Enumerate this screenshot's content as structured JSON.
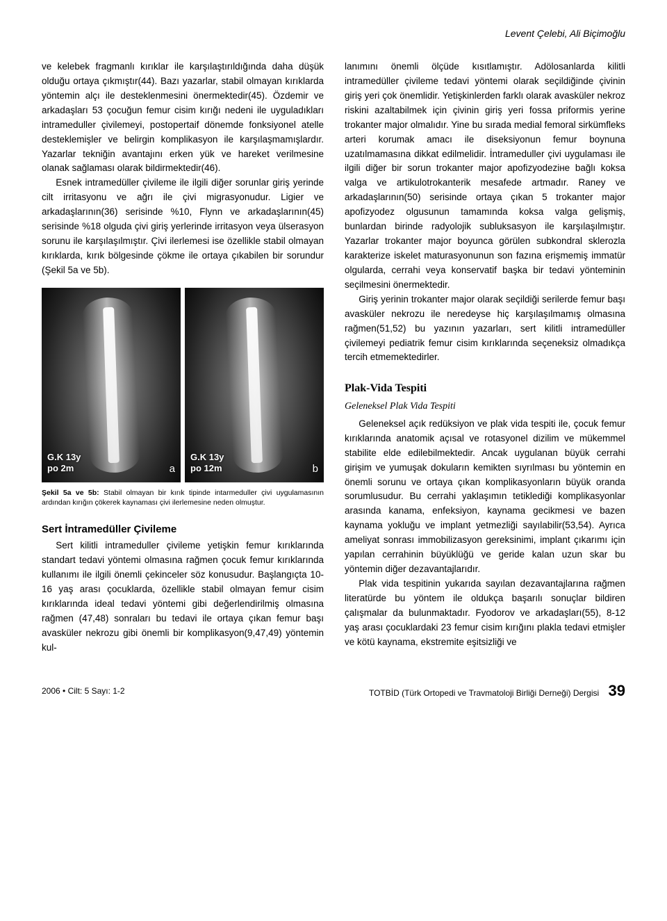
{
  "header": {
    "authors": "Levent Çelebi, Ali Biçimoğlu"
  },
  "col1": {
    "p1": "ve kelebek fragmanlı kırıklar ile karşılaştırıldığında daha düşük olduğu ortaya çıkmıştır(44). Bazı yazarlar, stabil olmayan kırıklarda yöntemin alçı ile desteklenmesini önermektedir(45). Özdemir ve arkadaşları 53 çocuğun femur cisim kırığı nedeni ile uyguladıkları intrameduller çivilemeyi, postopertaif dönemde fonksiyonel atelle desteklemişler ve belirgin komplikasyon ile karşılaşmamışlardır. Yazarlar tekniğin avantajını erken yük ve hareket verilmesine olanak sağlaması olarak bildirmektedir(46).",
    "p2": "Esnek intramedüller çivileme ile ilgili diğer sorunlar giriş yerinde cilt irritasyonu ve ağrı ile çivi migrasyonudur. Ligier ve arkadaşlarının(36) serisinde %10, Flynn ve arkadaşlarının(45) serisinde %18 olguda çivi giriş yerlerinde irritasyon veya ülserasyon sorunu ile karşılaşılmıştır. Çivi ilerlemesi ise özellikle stabil olmayan kırıklarda, kırık bölgesinde çökme ile ortaya çıkabilen bir sorundur (Şekil 5a ve 5b).",
    "fig_a_label": "G.K 13y",
    "fig_a_sub": "po 2m",
    "fig_a_letter": "a",
    "fig_b_label": "G.K 13y",
    "fig_b_sub": "po 12m",
    "fig_b_letter": "b",
    "caption_bold": "Şekil 5a ve 5b:",
    "caption_text": " Stabil olmayan bir kırık tipinde intarmeduller çivi uygulamasının ardından kırığın çökerek kaynaması çivi ilerlemesine neden olmuştur.",
    "sec1_title": "Sert İntramedüller Çivileme",
    "sec1_p1": "Sert kilitli intrameduller çivileme yetişkin femur kırıklarında standart tedavi yöntemi olmasına rağmen çocuk femur kırıklarında kullanımı ile ilgili önemli çekinceler söz konusudur. Başlangıçta 10-16 yaş arası çocuklarda, özellikle stabil olmayan femur cisim kırıklarında ideal tedavi yöntemi gibi değerlendirilmiş olmasına rağmen (47,48) sonraları bu tedavi ile ortaya çıkan femur başı avasküler nekrozu gibi önemli bir komplikasyon(9,47,49) yöntemin kul-"
  },
  "col2": {
    "p1": "lanımını önemli ölçüde kısıtlamıştır. Adölosanlarda kilitli intramedüller çivileme tedavi yöntemi olarak seçildiğinde çivinin giriş yeri çok önemlidir. Yetişkinlerden farklı olarak avasküler nekroz riskini azaltabilmek için çivinin giriş yeri fossa priformis yerine trokanter major olmalıdır. Yine bu sırada medial femoral sirkümfleks arteri korumak amacı ile diseksiyonun femur boynuna uzatılmamasına dikkat edilmelidir. İntrameduller çivi uygulaması ile ilgili diğer bir sorun trokanter major apofizyodeziне bağlı koksa valga ve artikulotrokanterik mesafede artmadır. Raney ve arkadaşlarının(50) serisinde ortaya çıkan 5 trokanter major apofizyodez olgusunun tamamında koksa valga gelişmiş, bunlardan birinde radyolojik subluksasyon ile karşılaşılmıştır. Yazarlar trokanter major boyunca görülen subkondral sklerozla karakterize iskelet maturasyonunun son fazına erişmemiş immatür olgularda, cerrahi veya konservatif başka bir tedavi yönteminin seçilmesini önermektedir.",
    "p2": "Giriş yerinin trokanter major olarak seçildiği serilerde femur başı avasküler nekrozu ile neredeyse hiç karşılaşılmamış olmasına rağmen(51,52) bu yazının yazarları, sert kilitli intramedüller çivilemeyi pediatrik femur cisim kırıklarında seçeneksiz olmadıkça tercih etmemektedirler.",
    "sec2_title": "Plak-Vida Tespiti",
    "sec2_sub": "Geleneksel Plak Vida Tespiti",
    "sec2_p1": "Geleneksel açık redüksiyon ve plak vida tespiti ile, çocuk femur kırıklarında anatomik açısal ve rotasyonel dizilim ve mükemmel stabilite elde edilebilmektedir. Ancak uygulanan büyük cerrahi girişim ve yumuşak dokuların kemikten sıyrılması bu yöntemin en önemli sorunu ve ortaya çıkan komplikasyonların büyük oranda sorumlusudur. Bu cerrahi yaklaşımın tetiklediği komplikasyonlar arasında kanama, enfeksiyon, kaynama gecikmesi ve bazen kaynama yokluğu ve implant yetmezliği sayılabilir(53,54). Ayrıca ameliyat sonrası immobilizasyon gereksinimi, implant çıkarımı için yapılan cerrahinin büyüklüğü ve geride kalan uzun skar bu yöntemin diğer dezavantajlarıdır.",
    "sec2_p2": "Plak vida tespitinin yukarıda sayılan dezavantajlarına rağmen literatürde bu yöntem ile oldukça başarılı sonuçlar bildiren çalışmalar da bulunmaktadır. Fyodorov ve arkadaşları(55), 8-12 yaş arası çocuklardaki 23 femur cisim kırığını plakla tedavi etmişler ve kötü kaynama, ekstremite eşitsizliği ve"
  },
  "footer": {
    "left": "2006 • Cilt: 5 Sayı: 1-2",
    "right": "TOTBİD (Türk Ortopedi ve Travmatoloji Birliği Derneği) Dergisi",
    "page": "39"
  }
}
